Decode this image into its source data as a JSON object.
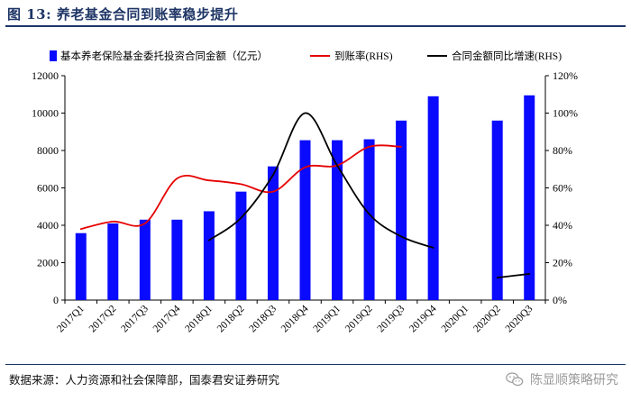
{
  "header": {
    "title": "图 13:  养老基金合同到账率稳步提升"
  },
  "chart_data": {
    "type": "bar+line",
    "categories": [
      "2017Q1",
      "2017Q2",
      "2017Q3",
      "2017Q4",
      "2018Q1",
      "2018Q2",
      "2018Q3",
      "2018Q4",
      "2019Q1",
      "2019Q2",
      "2019Q3",
      "2019Q4",
      "2020Q1",
      "2020Q2",
      "2020Q3"
    ],
    "bar_series": {
      "name": "基本养老保险基金委托投资合同金额（亿元）",
      "color": "#0a0aff",
      "axis": "left",
      "values": [
        3580,
        4100,
        4300,
        4300,
        4750,
        5800,
        7150,
        8550,
        8550,
        8600,
        9600,
        10900,
        null,
        9600,
        10950
      ]
    },
    "line_series": [
      {
        "name": "到账率(RHS)",
        "color": "#e60000",
        "axis": "right",
        "smooth": true,
        "values": [
          0.38,
          0.42,
          0.41,
          0.65,
          0.64,
          0.62,
          0.58,
          0.71,
          0.72,
          0.82,
          0.82,
          null,
          null,
          null,
          null
        ]
      },
      {
        "name": "合同金额同比增速(RHS)",
        "color": "#000000",
        "axis": "right",
        "smooth": true,
        "values": [
          null,
          null,
          null,
          null,
          0.32,
          0.44,
          0.67,
          1.0,
          0.72,
          0.46,
          0.34,
          0.28,
          null,
          0.12,
          0.14
        ]
      }
    ],
    "left_axis": {
      "min": 0,
      "max": 12000,
      "ticks": [
        "0",
        "2000",
        "4000",
        "6000",
        "8000",
        "10000",
        "12000"
      ]
    },
    "right_axis": {
      "min": 0,
      "max": 1.2,
      "ticks": [
        "0%",
        "20%",
        "40%",
        "60%",
        "80%",
        "100%",
        "120%"
      ]
    },
    "grid": false,
    "legend_position": "top"
  },
  "footer": {
    "source": "数据来源：人力资源和社会保障部，国泰君安证券研究",
    "watermark": "陈显顺策略研究",
    "watermark_icon": "wechat-icon"
  }
}
